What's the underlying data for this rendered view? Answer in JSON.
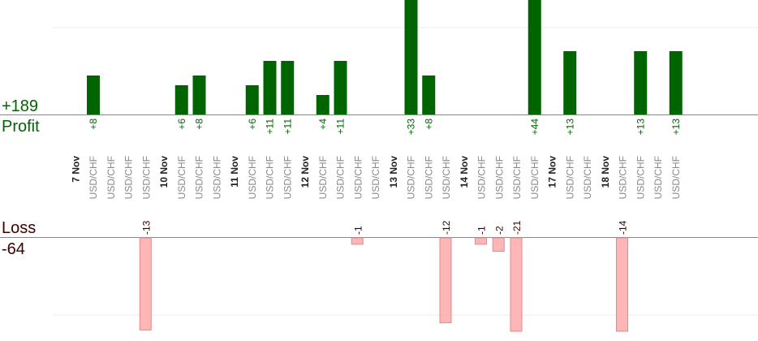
{
  "summary": {
    "profit_total": "+189",
    "profit_label": "Profit",
    "loss_label": "Loss",
    "loss_total": "-64"
  },
  "chart_data": {
    "type": "bar",
    "colors": {
      "profit": "#006400",
      "loss": "#ffb6b6",
      "profit_text": "#006400",
      "loss_text": "#3a0000",
      "instrument_text": "#888888",
      "date_text": "#222222"
    },
    "groups": [
      {
        "date": "7 Nov",
        "trades": [
          {
            "instrument": "USD/CHF",
            "value": 8
          },
          {
            "instrument": "USD/CHF",
            "value": 0
          },
          {
            "instrument": "USD/CHF",
            "value": 0
          },
          {
            "instrument": "USD/CHF",
            "value": -13
          }
        ]
      },
      {
        "date": "10 Nov",
        "trades": [
          {
            "instrument": "USD/CHF",
            "value": 6
          },
          {
            "instrument": "USD/CHF",
            "value": 8
          },
          {
            "instrument": "USD/CHF",
            "value": 0
          }
        ]
      },
      {
        "date": "11 Nov",
        "trades": [
          {
            "instrument": "USD/CHF",
            "value": 6
          },
          {
            "instrument": "USD/CHF",
            "value": 11
          },
          {
            "instrument": "USD/CHF",
            "value": 11
          }
        ]
      },
      {
        "date": "12 Nov",
        "trades": [
          {
            "instrument": "USD/CHF",
            "value": 4
          },
          {
            "instrument": "USD/CHF",
            "value": 11
          },
          {
            "instrument": "USD/CHF",
            "value": -1
          },
          {
            "instrument": "USD/CHF",
            "value": 0
          }
        ]
      },
      {
        "date": "13 Nov",
        "trades": [
          {
            "instrument": "USD/CHF",
            "value": 33
          },
          {
            "instrument": "USD/CHF",
            "value": 8
          },
          {
            "instrument": "USD/CHF",
            "value": -12
          }
        ]
      },
      {
        "date": "14 Nov",
        "trades": [
          {
            "instrument": "USD/CHF",
            "value": -1
          },
          {
            "instrument": "USD/CHF",
            "value": -2
          },
          {
            "instrument": "USD/CHF",
            "value": -21
          },
          {
            "instrument": "USD/CHF",
            "value": 44
          }
        ]
      },
      {
        "date": "17 Nov",
        "trades": [
          {
            "instrument": "USD/CHF",
            "value": 13
          },
          {
            "instrument": "USD/CHF",
            "value": 0
          }
        ]
      },
      {
        "date": "18 Nov",
        "trades": [
          {
            "instrument": "USD/CHF",
            "value": -14
          },
          {
            "instrument": "USD/CHF",
            "value": 13
          },
          {
            "instrument": "USD/CHF",
            "value": 0
          },
          {
            "instrument": "USD/CHF",
            "value": 13
          }
        ]
      }
    ]
  }
}
